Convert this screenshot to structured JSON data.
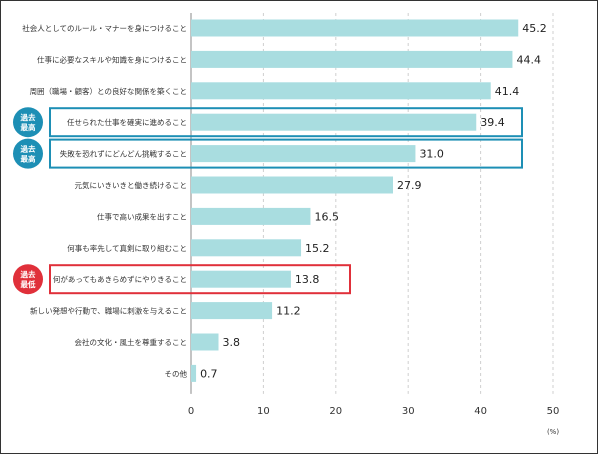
{
  "chart_data": {
    "type": "bar",
    "orientation": "horizontal",
    "categories": [
      "社会人としてのルール・マナーを身につけること",
      "仕事に必要なスキルや知識を身につけること",
      "周囲（職場・顧客）との良好な関係を築くこと",
      "任せられた仕事を確実に進めること",
      "失敗を恐れずにどんどん挑戦すること",
      "元気にいきいきと働き続けること",
      "仕事で高い成果を出すこと",
      "何事も率先して真剣に取り組むこと",
      "何があってもあきらめずにやりきること",
      "新しい発想や行動で、職場に刺激を与えること",
      "会社の文化・風土を尊重すること",
      "その他"
    ],
    "values": [
      45.2,
      44.4,
      41.4,
      39.4,
      31.0,
      27.9,
      16.5,
      15.2,
      13.8,
      11.2,
      3.8,
      0.7
    ],
    "value_labels": [
      "45.2",
      "44.4",
      "41.4",
      "39.4",
      "31.0",
      "27.9",
      "16.5",
      "15.2",
      "13.8",
      "11.2",
      "3.8",
      "0.7"
    ],
    "xlim": [
      0,
      50
    ],
    "xticks": [
      "0",
      "10",
      "20",
      "30",
      "40",
      "50"
    ],
    "unit_label": "(%)",
    "bar_color": "#a9dde0",
    "grid": "vertical dashed",
    "highlights": [
      {
        "index": 3,
        "badge": [
          "過去",
          "最高"
        ],
        "color": "#1d8fb5"
      },
      {
        "index": 4,
        "badge": [
          "過去",
          "最高"
        ],
        "color": "#1d8fb5"
      },
      {
        "index": 8,
        "badge": [
          "過去",
          "最低"
        ],
        "color": "#e0303a"
      }
    ]
  }
}
